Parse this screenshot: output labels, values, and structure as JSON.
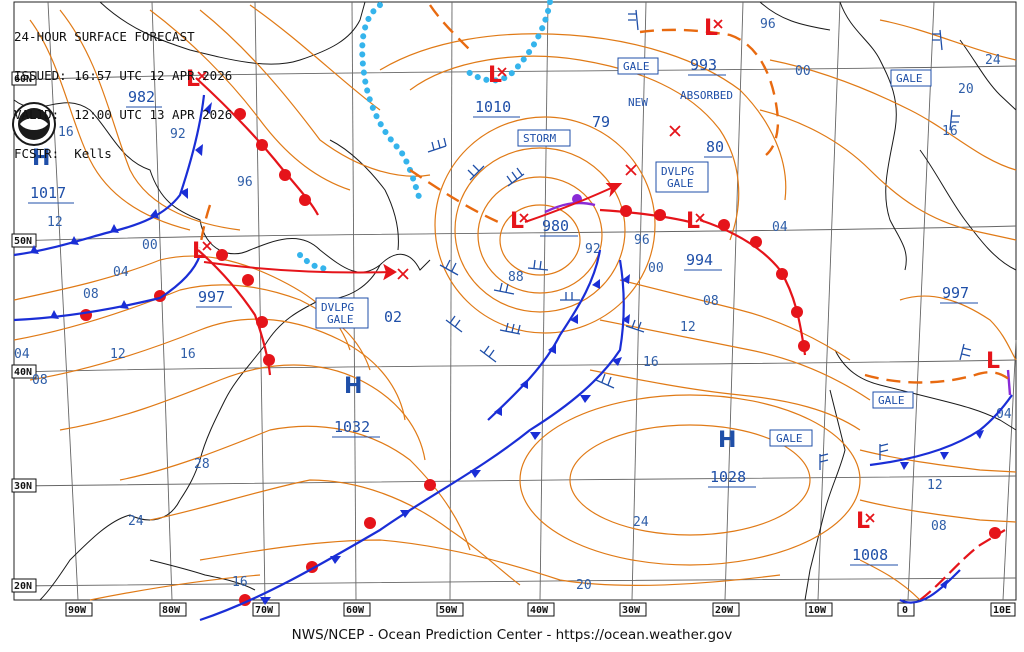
{
  "header": {
    "title": "24-HOUR SURFACE FORECAST",
    "issued": "ISSUED: 16:57 UTC 12 APR 2026",
    "valid": "VALID:  12:00 UTC 13 APR 2026",
    "forecaster": "FCSTR:  Kells"
  },
  "footer": "NWS/NCEP - Ocean Prediction Center - https://ocean.weather.gov",
  "latitude_labels": [
    "60N",
    "50N",
    "40N",
    "30N",
    "20N"
  ],
  "longitude_labels": [
    "90W",
    "80W",
    "70W",
    "60W",
    "50W",
    "40W",
    "30W",
    "20W",
    "10W",
    "0",
    "10E"
  ],
  "pressure_labels": [
    {
      "text": "982",
      "big": true
    },
    {
      "text": "1017",
      "big": true
    },
    {
      "text": "997",
      "big": true
    },
    {
      "text": "1010",
      "big": true
    },
    {
      "text": "993",
      "big": true
    },
    {
      "text": "79",
      "big": true
    },
    {
      "text": "80",
      "big": true
    },
    {
      "text": "980",
      "big": true
    },
    {
      "text": "994",
      "big": true
    },
    {
      "text": "02",
      "big": true
    },
    {
      "text": "1032",
      "big": true
    },
    {
      "text": "1028",
      "big": true
    },
    {
      "text": "997",
      "big": true
    },
    {
      "text": "1008",
      "big": true
    }
  ],
  "isobar_labels": [
    "96",
    "00",
    "24",
    "20",
    "16",
    "92",
    "96",
    "12",
    "00",
    "04",
    "08",
    "12",
    "16",
    "04",
    "08",
    "92",
    "96",
    "00",
    "88",
    "08",
    "12",
    "16",
    "04",
    "28",
    "24",
    "24",
    "20",
    "16",
    "12",
    "08",
    "04",
    "16"
  ],
  "warnings": [
    "GALE",
    "GALE",
    "STORM",
    "DVLPG GALE",
    "DVLPG GALE",
    "GALE",
    "GALE"
  ],
  "notes": [
    "NEW",
    "ABSORBED"
  ],
  "high_letter": "H",
  "low_letter": "L",
  "colors": {
    "isobar": "#e07a16",
    "warm_front": "#e5141a",
    "cold_front": "#1a2ed6",
    "occluded": "#8a2bd6",
    "ice": "#35b4ec",
    "coast": "#1a1a1a",
    "grid": "#555555"
  },
  "logo": "NOAA"
}
